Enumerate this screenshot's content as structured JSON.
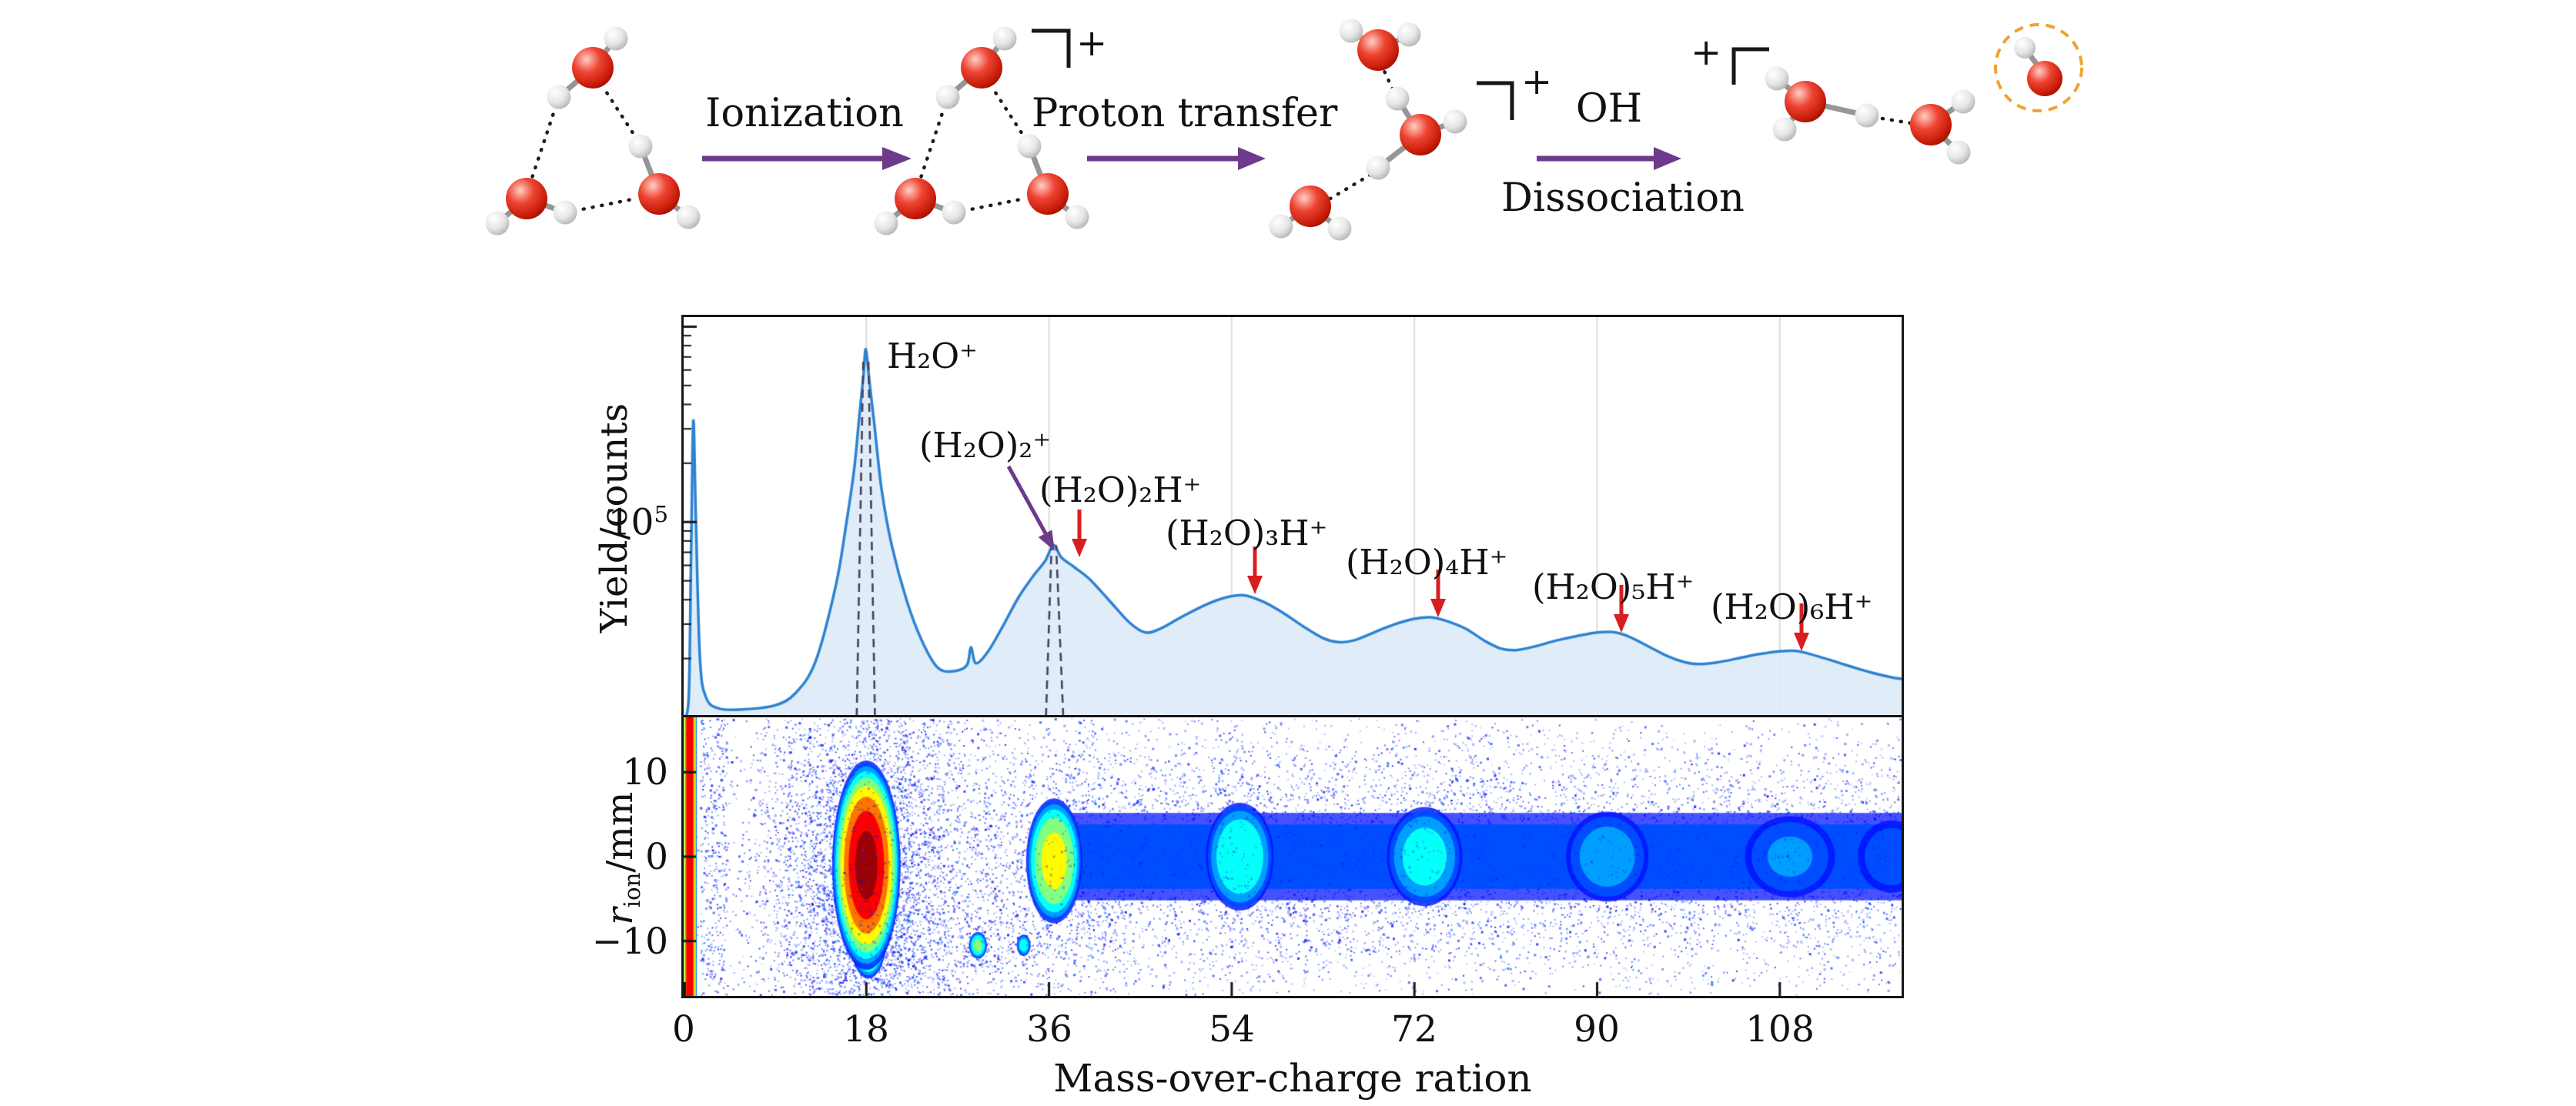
{
  "scheme": {
    "labels": {
      "ionization": "Ionization",
      "proton_transfer": "Proton transfer",
      "oh": "OH",
      "dissociation": "Dissociation",
      "plus": "+"
    },
    "molecules": [
      "water-trimer",
      "water-trimer-cation",
      "proton-transferred-trimer-cation",
      "protonated-water-dimer-cation",
      "oh-radical"
    ],
    "colors": {
      "arrow": "#6e3a8c",
      "oxygen": "#d32413",
      "hydrogen": "#dcdcdc",
      "dashed_circle": "#f0a22e"
    }
  },
  "chart_data": [
    {
      "type": "line",
      "title": "",
      "ylabel": "Yield/counts",
      "xlabel": "Mass-over-charge ration",
      "yscale": "log",
      "ytick": {
        "base": "10",
        "exp": "5"
      },
      "ytick_frac": 0.488,
      "xlim": [
        0,
        120
      ],
      "xticks": [
        0,
        18,
        36,
        54,
        72,
        90,
        108
      ],
      "grid": true,
      "grid_color": "#dcdcdc",
      "line_color": "#2d82d2",
      "fill_color": "#ddecf8",
      "dash_color": "#46405c",
      "red_arrow_color": "#d81f1f",
      "purple_arrow_color": "#6e3a8c",
      "points": [
        [
          0,
          0
        ],
        [
          0.5,
          0.05
        ],
        [
          0.72,
          0.38
        ],
        [
          0.95,
          0.74
        ],
        [
          1.2,
          0.5
        ],
        [
          1.6,
          0.15
        ],
        [
          2.2,
          0.05
        ],
        [
          3.5,
          0.022
        ],
        [
          6,
          0.02
        ],
        [
          9,
          0.03
        ],
        [
          11,
          0.06
        ],
        [
          13,
          0.14
        ],
        [
          15,
          0.33
        ],
        [
          16,
          0.48
        ],
        [
          16.8,
          0.62
        ],
        [
          17.3,
          0.75
        ],
        [
          17.7,
          0.85
        ],
        [
          17.95,
          0.92
        ],
        [
          18.3,
          0.84
        ],
        [
          18.8,
          0.73
        ],
        [
          19.5,
          0.57
        ],
        [
          20.5,
          0.43
        ],
        [
          22,
          0.29
        ],
        [
          23.5,
          0.19
        ],
        [
          25,
          0.125
        ],
        [
          26.5,
          0.115
        ],
        [
          27.9,
          0.13
        ],
        [
          28.3,
          0.175
        ],
        [
          28.8,
          0.135
        ],
        [
          30,
          0.165
        ],
        [
          31.5,
          0.23
        ],
        [
          33,
          0.3
        ],
        [
          34.5,
          0.355
        ],
        [
          35.6,
          0.39
        ],
        [
          36.45,
          0.43
        ],
        [
          37.2,
          0.4
        ],
        [
          38.5,
          0.375
        ],
        [
          40,
          0.345
        ],
        [
          42,
          0.29
        ],
        [
          44,
          0.235
        ],
        [
          45.5,
          0.212
        ],
        [
          47,
          0.222
        ],
        [
          49,
          0.25
        ],
        [
          51.5,
          0.282
        ],
        [
          53.5,
          0.3
        ],
        [
          55.2,
          0.305
        ],
        [
          57,
          0.29
        ],
        [
          59,
          0.262
        ],
        [
          61,
          0.228
        ],
        [
          63,
          0.198
        ],
        [
          64.5,
          0.188
        ],
        [
          66,
          0.192
        ],
        [
          68,
          0.212
        ],
        [
          70,
          0.232
        ],
        [
          72,
          0.246
        ],
        [
          73.6,
          0.25
        ],
        [
          75,
          0.242
        ],
        [
          77,
          0.222
        ],
        [
          79,
          0.19
        ],
        [
          80.5,
          0.172
        ],
        [
          82,
          0.168
        ],
        [
          84,
          0.178
        ],
        [
          86,
          0.192
        ],
        [
          88,
          0.203
        ],
        [
          90,
          0.212
        ],
        [
          91.6,
          0.213
        ],
        [
          93,
          0.203
        ],
        [
          95,
          0.178
        ],
        [
          97,
          0.152
        ],
        [
          98.6,
          0.138
        ],
        [
          100,
          0.133
        ],
        [
          102,
          0.138
        ],
        [
          104,
          0.148
        ],
        [
          106,
          0.158
        ],
        [
          108,
          0.165
        ],
        [
          109.6,
          0.166
        ],
        [
          111,
          0.158
        ],
        [
          113,
          0.143
        ],
        [
          115,
          0.127
        ],
        [
          117,
          0.112
        ],
        [
          119,
          0.1
        ],
        [
          120,
          0.096
        ]
      ],
      "dashed_markers": [
        {
          "x_base": 17.05,
          "x_top": 17.7,
          "top_frac": 0.9
        },
        {
          "x_base": 18.85,
          "x_top": 18.2,
          "top_frac": 0.9
        },
        {
          "x_base": 35.7,
          "x_top": 36.25,
          "top_frac": 0.43
        },
        {
          "x_base": 37.4,
          "x_top": 36.7,
          "top_frac": 0.43
        }
      ],
      "annotations": [
        {
          "label": "H₂O⁺",
          "peak_mz": 18
        },
        {
          "label": "(H₂O)₂⁺",
          "peak_mz": 36.5,
          "arrow": "purple"
        },
        {
          "label": "(H₂O)₂H⁺",
          "peak_mz": 39,
          "arrow": "red"
        },
        {
          "label": "(H₂O)₃H⁺",
          "peak_mz": 56,
          "arrow": "red"
        },
        {
          "label": "(H₂O)₄H⁺",
          "peak_mz": 74,
          "arrow": "red"
        },
        {
          "label": "(H₂O)₅H⁺",
          "peak_mz": 92,
          "arrow": "red"
        },
        {
          "label": "(H₂O)₆H⁺",
          "peak_mz": 110,
          "arrow": "red"
        }
      ]
    },
    {
      "type": "heatmap",
      "ylabel": {
        "base": "r",
        "sub": "ion",
        "suffix": "/mm"
      },
      "ylim": [
        -16.5,
        16.5
      ],
      "yticks": [
        10,
        0,
        -10
      ],
      "ytick_labels": [
        "10",
        "0",
        "−10"
      ],
      "xlim": [
        0,
        120
      ],
      "colormap": "jet",
      "blobs": [
        {
          "mz": 0.6,
          "r": 0,
          "rx": 0.7,
          "ry": 22,
          "intensity": 0.97,
          "stripe": true
        },
        {
          "mz": 18,
          "r": -1,
          "rx": 3.4,
          "ry": 12.5,
          "intensity": 1.0
        },
        {
          "mz": 18.2,
          "r": -9,
          "rx": 1.9,
          "ry": 5.5,
          "intensity": 0.8
        },
        {
          "mz": 36.5,
          "r": -0.5,
          "rx": 2.8,
          "ry": 7.5,
          "intensity": 0.68
        },
        {
          "mz": 29,
          "r": -10.5,
          "rx": 0.9,
          "ry": 1.6,
          "intensity": 0.55
        },
        {
          "mz": 33.5,
          "r": -10.5,
          "rx": 0.7,
          "ry": 1.3,
          "intensity": 0.45
        },
        {
          "mz": 54.8,
          "r": 0,
          "rx": 3.4,
          "ry": 6.5,
          "intensity": 0.5
        },
        {
          "mz": 73,
          "r": 0,
          "rx": 3.8,
          "ry": 6,
          "intensity": 0.44
        },
        {
          "mz": 91,
          "r": 0,
          "rx": 4.2,
          "ry": 5.5,
          "intensity": 0.34
        },
        {
          "mz": 109,
          "r": 0,
          "rx": 4.6,
          "ry": 5,
          "intensity": 0.3
        },
        {
          "mz": 119,
          "r": 0,
          "rx": 3.5,
          "ry": 4.5,
          "intensity": 0.26
        }
      ],
      "band": {
        "from": 38,
        "to": 121,
        "ry": 5.5,
        "intensity": 0.24
      },
      "noise": {
        "cloud": {
          "mz": 19,
          "sx": 6.5,
          "sy": 13,
          "n": 1500
        },
        "band": {
          "from": 38,
          "to": 121,
          "sy": 8.5,
          "n": 2400
        },
        "column": {
          "from": 1.6,
          "to": 4.2,
          "n": 320
        },
        "uniform": {
          "n": 550
        }
      }
    }
  ]
}
